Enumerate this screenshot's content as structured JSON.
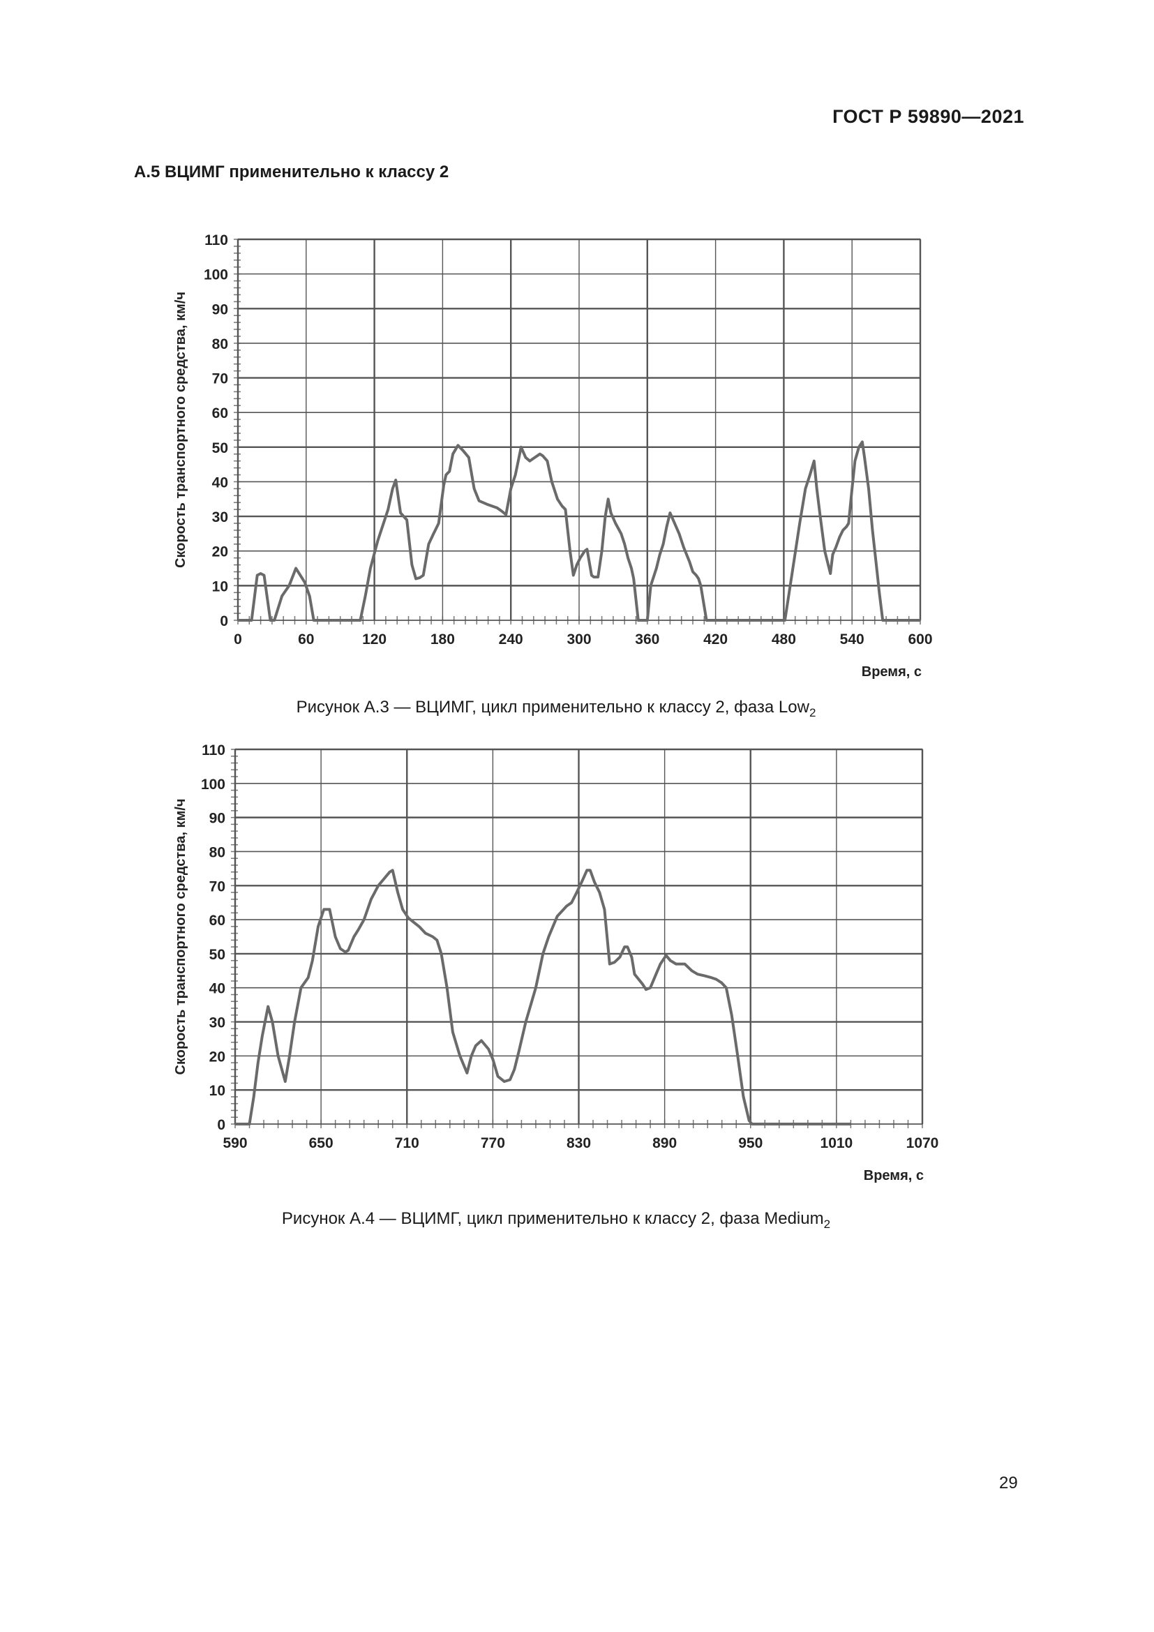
{
  "header": {
    "doc_code": "ГОСТ Р 59890—2021"
  },
  "section": {
    "title": "А.5 ВЦИМГ применительно к классу 2"
  },
  "figures": [
    {
      "caption": "Рисунок А.3 — ВЦИМГ, цикл применительно к классу 2, фаза Low",
      "caption_sub": "2"
    },
    {
      "caption": "Рисунок А.4 — ВЦИМГ, цикл применительно к классу 2, фаза Medium",
      "caption_sub": "2"
    }
  ],
  "page_number": "29",
  "chart_data": [
    {
      "type": "line",
      "title": "",
      "xlabel": "Время, с",
      "ylabel": "Скорость транспортного средства, км/ч",
      "xlim": [
        0,
        600
      ],
      "ylim": [
        0,
        110
      ],
      "x_ticks": [
        "0",
        "60",
        "120",
        "180",
        "240",
        "300",
        "360",
        "420",
        "480",
        "540",
        "600"
      ],
      "y_ticks": [
        "0",
        "10",
        "20",
        "30",
        "40",
        "50",
        "60",
        "70",
        "80",
        "90",
        "100",
        "110"
      ],
      "grid": true,
      "line_color": "#6a6a6a",
      "grid_color": "#555555",
      "series": [
        {
          "name": "Low2",
          "points": [
            [
              0,
              0
            ],
            [
              12,
              0
            ],
            [
              17,
              13
            ],
            [
              20,
              13.5
            ],
            [
              23,
              13
            ],
            [
              28.5,
              0
            ],
            [
              32,
              0
            ],
            [
              38.7,
              7
            ],
            [
              45,
              10
            ],
            [
              51,
              15
            ],
            [
              58.7,
              11
            ],
            [
              63,
              7
            ],
            [
              66.7,
              0
            ],
            [
              107.6,
              0
            ],
            [
              112,
              7
            ],
            [
              116.5,
              15
            ],
            [
              123,
              23
            ],
            [
              132,
              32
            ],
            [
              136,
              38
            ],
            [
              138.8,
              40.5
            ],
            [
              143,
              31
            ],
            [
              148.5,
              29
            ],
            [
              153,
              16
            ],
            [
              156.5,
              12
            ],
            [
              160,
              12.3
            ],
            [
              163,
              13
            ],
            [
              167.7,
              22
            ],
            [
              172,
              25
            ],
            [
              176.5,
              28
            ],
            [
              181,
              39
            ],
            [
              183,
              42
            ],
            [
              186,
              43
            ],
            [
              189,
              48
            ],
            [
              193.5,
              50.5
            ],
            [
              198,
              49
            ],
            [
              203,
              47
            ],
            [
              207.7,
              38
            ],
            [
              212,
              34.5
            ],
            [
              219,
              33.5
            ],
            [
              227.7,
              32.5
            ],
            [
              232,
              31.5
            ],
            [
              235.7,
              30.5
            ],
            [
              240,
              38
            ],
            [
              244,
              42
            ],
            [
              249,
              50
            ],
            [
              253,
              47
            ],
            [
              256.6,
              46
            ],
            [
              261,
              47
            ],
            [
              265.5,
              48
            ],
            [
              268,
              47.5
            ],
            [
              272,
              46
            ],
            [
              276,
              40
            ],
            [
              281,
              35
            ],
            [
              285,
              33
            ],
            [
              288,
              32
            ],
            [
              292,
              20
            ],
            [
              295,
              13
            ],
            [
              298,
              16
            ],
            [
              301,
              18
            ],
            [
              305,
              20
            ],
            [
              307,
              20.5
            ],
            [
              311,
              13
            ],
            [
              313,
              12.5
            ],
            [
              316.6,
              12.5
            ],
            [
              320,
              20
            ],
            [
              323,
              30
            ],
            [
              325.6,
              35
            ],
            [
              328,
              31
            ],
            [
              332,
              28
            ],
            [
              337,
              25
            ],
            [
              340,
              22
            ],
            [
              343,
              18
            ],
            [
              346,
              15
            ],
            [
              348,
              12
            ],
            [
              352,
              0
            ],
            [
              360,
              0
            ],
            [
              363,
              10
            ],
            [
              368,
              15
            ],
            [
              371,
              19
            ],
            [
              374,
              22
            ],
            [
              377,
              27
            ],
            [
              380,
              31
            ],
            [
              384,
              28
            ],
            [
              388,
              25
            ],
            [
              392,
              21
            ],
            [
              397,
              17
            ],
            [
              400,
              14
            ],
            [
              403,
              13
            ],
            [
              405,
              12
            ],
            [
              407,
              10
            ],
            [
              412,
              0
            ],
            [
              481,
              0
            ],
            [
              488,
              15
            ],
            [
              494,
              28
            ],
            [
              499,
              38
            ],
            [
              503,
              42
            ],
            [
              506.6,
              46
            ],
            [
              509,
              38
            ],
            [
              512,
              30
            ],
            [
              516,
              20
            ],
            [
              521,
              13.5
            ],
            [
              523,
              19
            ],
            [
              525.7,
              21
            ],
            [
              529,
              24
            ],
            [
              532,
              26
            ],
            [
              535,
              27
            ],
            [
              537,
              28
            ],
            [
              540,
              38
            ],
            [
              542.6,
              46
            ],
            [
              546,
              50
            ],
            [
              549,
              51.5
            ],
            [
              551,
              47
            ],
            [
              554.6,
              38
            ],
            [
              558,
              26
            ],
            [
              562,
              14
            ],
            [
              564,
              8
            ],
            [
              567,
              0
            ],
            [
              600,
              0
            ]
          ]
        }
      ]
    },
    {
      "type": "line",
      "title": "",
      "xlabel": "Время, с",
      "ylabel": "Скорость транспортного средства, км/ч",
      "xlim": [
        590,
        1070
      ],
      "ylim": [
        0,
        110
      ],
      "x_ticks": [
        "590",
        "650",
        "710",
        "770",
        "830",
        "890",
        "950",
        "1010",
        "1070"
      ],
      "y_ticks": [
        "0",
        "10",
        "20",
        "30",
        "40",
        "50",
        "60",
        "70",
        "80",
        "90",
        "100",
        "110"
      ],
      "grid": true,
      "line_color": "#6a6a6a",
      "grid_color": "#555555",
      "series": [
        {
          "name": "Medium2",
          "points": [
            [
              590,
              0
            ],
            [
              600,
              0
            ],
            [
              603,
              8
            ],
            [
              606,
              18
            ],
            [
              609,
              26
            ],
            [
              613,
              34.5
            ],
            [
              616,
              30
            ],
            [
              620,
              20
            ],
            [
              625,
              12.5
            ],
            [
              628,
              20
            ],
            [
              631.5,
              30
            ],
            [
              636,
              40
            ],
            [
              641,
              43
            ],
            [
              644,
              48
            ],
            [
              648,
              58
            ],
            [
              652,
              63
            ],
            [
              656,
              63
            ],
            [
              660,
              55
            ],
            [
              663.5,
              51.5
            ],
            [
              667,
              50.5
            ],
            [
              669,
              51
            ],
            [
              673,
              55
            ],
            [
              676,
              57
            ],
            [
              680,
              60
            ],
            [
              685,
              66
            ],
            [
              690,
              70
            ],
            [
              694,
              72
            ],
            [
              698,
              74
            ],
            [
              700,
              74.5
            ],
            [
              703.6,
              68
            ],
            [
              707,
              63
            ],
            [
              711,
              60.5
            ],
            [
              718.5,
              58
            ],
            [
              723,
              56
            ],
            [
              728,
              55
            ],
            [
              731,
              54
            ],
            [
              734,
              50
            ],
            [
              738,
              40
            ],
            [
              742,
              27
            ],
            [
              747,
              20
            ],
            [
              752,
              15
            ],
            [
              755,
              20
            ],
            [
              758,
              23
            ],
            [
              762,
              24.5
            ],
            [
              767,
              22
            ],
            [
              770,
              19
            ],
            [
              773.5,
              14
            ],
            [
              778,
              12.5
            ],
            [
              782,
              13
            ],
            [
              785,
              16
            ],
            [
              788,
              21
            ],
            [
              793,
              30
            ],
            [
              800,
              40
            ],
            [
              805,
              50
            ],
            [
              809,
              55
            ],
            [
              815,
              61
            ],
            [
              821.5,
              64
            ],
            [
              825,
              65
            ],
            [
              828.6,
              68
            ],
            [
              832,
              71
            ],
            [
              835.7,
              74.5
            ],
            [
              838,
              74.5
            ],
            [
              841,
              71
            ],
            [
              844.5,
              68
            ],
            [
              848,
              63
            ],
            [
              851.6,
              47
            ],
            [
              855,
              47.5
            ],
            [
              858.7,
              49
            ],
            [
              862,
              52
            ],
            [
              864,
              52
            ],
            [
              867,
              49
            ],
            [
              869,
              44
            ],
            [
              874.7,
              41
            ],
            [
              877,
              39.5
            ],
            [
              880,
              40
            ],
            [
              884,
              44
            ],
            [
              887,
              47
            ],
            [
              891,
              49.5
            ],
            [
              894,
              48
            ],
            [
              898,
              47
            ],
            [
              904,
              47
            ],
            [
              909,
              45
            ],
            [
              913,
              44
            ],
            [
              918,
              43.5
            ],
            [
              922.6,
              43
            ],
            [
              926,
              42.5
            ],
            [
              929.7,
              41.5
            ],
            [
              933,
              40
            ],
            [
              936.8,
              32
            ],
            [
              941,
              20
            ],
            [
              945,
              8
            ],
            [
              949,
              1
            ],
            [
              951,
              0
            ],
            [
              1020,
              0
            ]
          ]
        }
      ]
    }
  ]
}
